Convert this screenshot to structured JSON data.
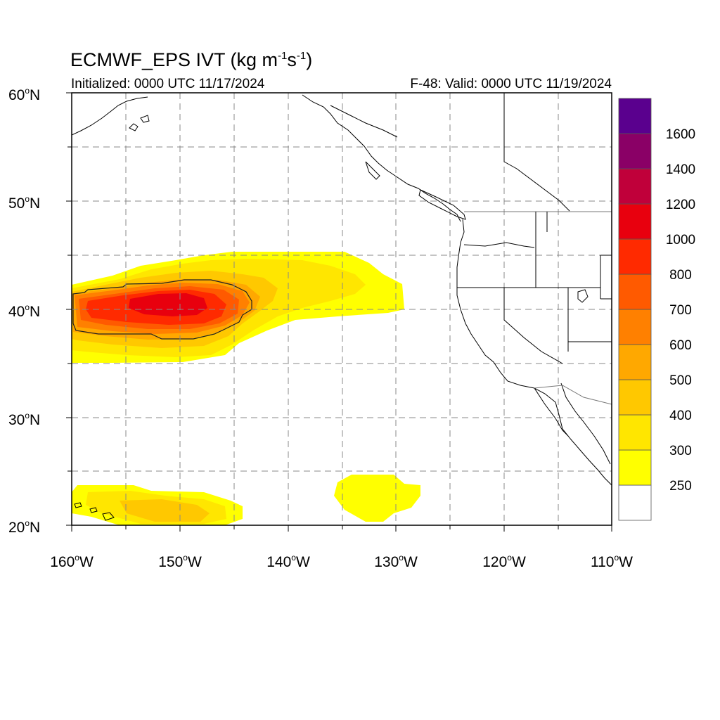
{
  "title": {
    "main": "ECMWF_EPS IVT (kg m",
    "sup1": "-1",
    "mid": "s",
    "sup2": "-1",
    "close": ")"
  },
  "subtitle_left": "Initialized: 0000 UTC 11/17/2024",
  "subtitle_right": "F-48: Valid: 0000 UTC 11/19/2024",
  "axes": {
    "lat_labels": [
      "60",
      "50",
      "40",
      "30",
      "20"
    ],
    "lat_suffix": "N",
    "lon_labels": [
      "160",
      "150",
      "140",
      "130",
      "120",
      "110"
    ],
    "lon_suffix": "W",
    "degree_symbol": "o"
  },
  "colorbar": {
    "labels": [
      "250",
      "300",
      "400",
      "500",
      "600",
      "700",
      "800",
      "1000",
      "1200",
      "1400",
      "1600"
    ],
    "colors": [
      "#ffffff",
      "#ffff00",
      "#ffe600",
      "#ffc800",
      "#ffa800",
      "#ff8000",
      "#ff5a00",
      "#ff2a00",
      "#e8000e",
      "#c0003a",
      "#8a0066",
      "#5a008e"
    ]
  },
  "contour_level_kg_m_s": 800
}
